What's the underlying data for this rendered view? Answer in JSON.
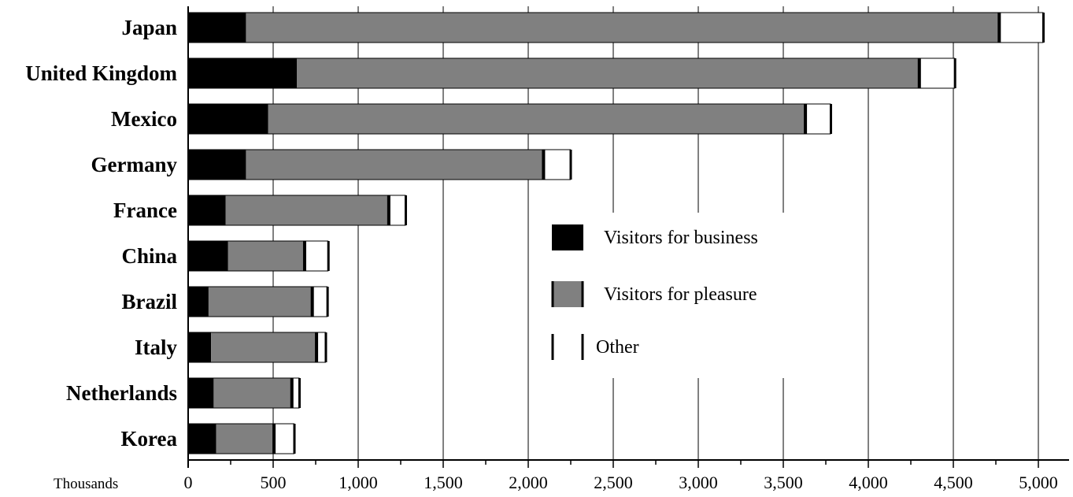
{
  "chart_data": {
    "type": "bar",
    "orientation": "horizontal",
    "stacked": true,
    "categories": [
      "Japan",
      "United Kingdom",
      "Mexico",
      "Germany",
      "France",
      "China",
      "Brazil",
      "Italy",
      "Netherlands",
      "Korea"
    ],
    "series": [
      {
        "name": "Visitors for business",
        "color": "#000000",
        "values": [
          340,
          640,
          470,
          340,
          220,
          235,
          120,
          135,
          150,
          165
        ]
      },
      {
        "name": "Visitors for pleasure",
        "color": "#808080",
        "values": [
          4430,
          3660,
          3160,
          1750,
          960,
          450,
          610,
          620,
          460,
          340
        ]
      },
      {
        "name": "Other",
        "color": "#ffffff",
        "values": [
          260,
          210,
          150,
          160,
          100,
          140,
          90,
          55,
          45,
          120
        ]
      }
    ],
    "xlim": [
      0,
      5000
    ],
    "xticks": [
      "0",
      "500",
      "1,000",
      "1,500",
      "2,000",
      "2,500",
      "3,000",
      "3,500",
      "4,000",
      "4,500",
      "5,000"
    ],
    "x_unit_label": "Thousands",
    "grid": "vertical",
    "legend_position": "center-right"
  }
}
